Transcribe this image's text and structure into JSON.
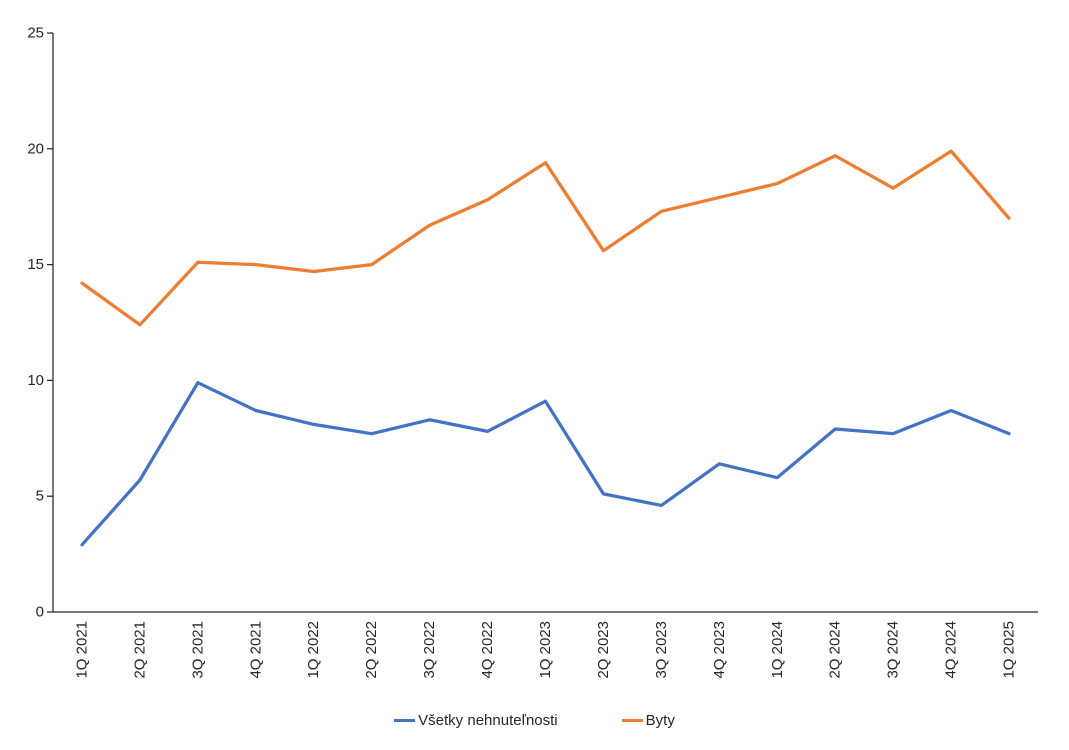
{
  "chart_data": {
    "type": "line",
    "title": "",
    "xlabel": "",
    "ylabel": "",
    "categories": [
      "1Q 2021",
      "2Q 2021",
      "3Q 2021",
      "4Q 2021",
      "1Q 2022",
      "2Q 2022",
      "3Q 2022",
      "4Q 2022",
      "1Q 2023",
      "2Q 2023",
      "3Q 2023",
      "4Q 2023",
      "1Q 2024",
      "2Q 2024",
      "3Q 2024",
      "4Q 2024",
      "1Q 2025"
    ],
    "series": [
      {
        "name": "Všetky nehnuteľnosti",
        "color": "#4472C4",
        "values": [
          2.9,
          5.7,
          9.9,
          8.7,
          8.1,
          7.7,
          8.3,
          7.8,
          9.1,
          5.1,
          4.6,
          6.4,
          5.8,
          7.9,
          7.7,
          8.7,
          7.7
        ]
      },
      {
        "name": "Byty",
        "color": "#ED7D31",
        "values": [
          14.2,
          12.4,
          15.1,
          15.0,
          14.7,
          15.0,
          16.7,
          17.8,
          19.4,
          15.6,
          17.3,
          17.9,
          18.5,
          19.7,
          18.3,
          19.9,
          17.0
        ]
      }
    ],
    "ylim": [
      0,
      25
    ],
    "yticks": [
      0,
      5,
      10,
      15,
      20,
      25
    ],
    "grid": false,
    "legend_position": "bottom",
    "x_tick_rotation": -90,
    "axis_color": "#262626",
    "text_color": "#262626"
  }
}
